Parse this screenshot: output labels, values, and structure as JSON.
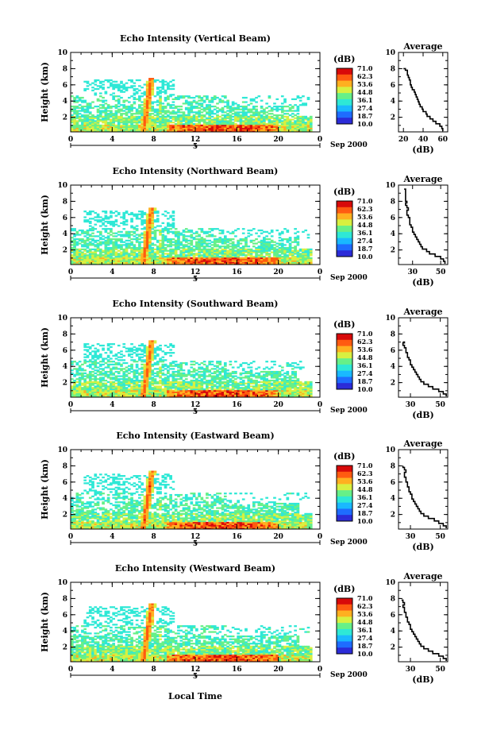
{
  "figure": {
    "xlabel": "Local Time",
    "date_label": "Sep 2000",
    "day_label": "5",
    "colorbar_unit": "(dB)",
    "colorbar_ticks": [
      "71.0",
      "62.3",
      "53.6",
      "44.8",
      "36.1",
      "27.4",
      "18.7",
      "10.0"
    ],
    "colormap": [
      "#2a2ad8",
      "#1e6cff",
      "#18b8ff",
      "#2ee8d6",
      "#66f088",
      "#d8f040",
      "#ffb020",
      "#ff5a10",
      "#d80a0a"
    ],
    "ylabel": "Height (km)",
    "avg_title": "Average",
    "avg_xlabel": "(dB)",
    "line_color": "#000000"
  },
  "chart_data": [
    {
      "type": "heatmap",
      "title": "Echo Intensity (Vertical Beam)",
      "xlabel": "",
      "ylabel": "Height (km)",
      "x_ticks": [
        "0",
        "4",
        "8",
        "12",
        "16",
        "20",
        "0"
      ],
      "y_ticks": [
        "2",
        "4",
        "6",
        "8",
        "10"
      ],
      "xlim": [
        0,
        24
      ],
      "ylim": [
        0.2,
        10
      ],
      "zlim": [
        10.0,
        71.0
      ],
      "echo_top_km": 6.5,
      "profile": {
        "type": "line",
        "title": "Average",
        "xlabel": "(dB)",
        "x_ticks": [
          "20",
          "40",
          "60"
        ],
        "xlim": [
          15,
          65
        ],
        "y": [
          0.3,
          0.6,
          0.9,
          1.2,
          1.5,
          1.8,
          2.1,
          2.4,
          2.7,
          3.0,
          3.3,
          3.6,
          3.9,
          4.2,
          4.5,
          4.8,
          5.1,
          5.4,
          5.7,
          6.0,
          6.3,
          6.6,
          6.9,
          7.2,
          7.5,
          7.8,
          8.0
        ],
        "x": [
          60,
          59,
          57,
          53,
          50,
          47,
          44,
          43,
          40,
          39,
          37,
          36,
          35,
          34,
          33,
          32,
          31,
          29,
          28,
          27,
          27,
          26,
          25,
          24,
          24,
          22,
          20
        ]
      }
    },
    {
      "type": "heatmap",
      "title": "Echo Intensity (Northward Beam)",
      "xlabel": "",
      "ylabel": "Height (km)",
      "x_ticks": [
        "0",
        "4",
        "8",
        "12",
        "16",
        "20",
        "0"
      ],
      "y_ticks": [
        "2",
        "4",
        "6",
        "8",
        "10"
      ],
      "xlim": [
        0,
        24
      ],
      "ylim": [
        0.2,
        10
      ],
      "zlim": [
        10.0,
        71.0
      ],
      "echo_top_km": 6.8,
      "profile": {
        "type": "line",
        "title": "Average",
        "xlabel": "(dB)",
        "x_ticks": [
          "30",
          "50"
        ],
        "xlim": [
          20,
          55
        ],
        "y": [
          0.3,
          0.6,
          0.9,
          1.2,
          1.5,
          1.8,
          2.1,
          2.4,
          2.7,
          3.0,
          3.3,
          3.6,
          3.9,
          4.2,
          4.5,
          4.8,
          5.1,
          5.4,
          5.7,
          6.0,
          6.3,
          6.6,
          6.9,
          7.2,
          7.5,
          7.8,
          8.0,
          9.5
        ],
        "x": [
          53,
          52,
          50,
          46,
          42,
          40,
          37,
          36,
          35,
          34,
          33,
          32,
          31,
          30,
          30,
          29,
          28,
          28,
          28,
          27,
          26,
          26,
          27,
          26,
          25,
          26,
          25,
          24
        ]
      }
    },
    {
      "type": "heatmap",
      "title": "Echo Intensity (Southward Beam)",
      "xlabel": "",
      "ylabel": "Height (km)",
      "x_ticks": [
        "0",
        "4",
        "8",
        "12",
        "16",
        "20",
        "0"
      ],
      "y_ticks": [
        "2",
        "4",
        "6",
        "8",
        "10"
      ],
      "xlim": [
        0,
        24
      ],
      "ylim": [
        0.2,
        10
      ],
      "zlim": [
        10.0,
        71.0
      ],
      "echo_top_km": 6.8,
      "profile": {
        "type": "line",
        "title": "Average",
        "xlabel": "(dB)",
        "x_ticks": [
          "30",
          "50"
        ],
        "xlim": [
          22,
          55
        ],
        "y": [
          0.3,
          0.6,
          0.9,
          1.2,
          1.5,
          1.8,
          2.1,
          2.4,
          2.7,
          3.0,
          3.3,
          3.6,
          3.9,
          4.2,
          4.5,
          4.8,
          5.1,
          5.4,
          5.7,
          6.0,
          6.3,
          6.6,
          6.9,
          7.0
        ],
        "x": [
          54,
          52,
          49,
          45,
          42,
          39,
          37,
          36,
          35,
          34,
          33,
          32,
          31,
          30,
          30,
          29,
          28,
          28,
          27,
          27,
          26,
          25,
          26,
          25
        ]
      }
    },
    {
      "type": "heatmap",
      "title": "Echo Intensity (Eastward Beam)",
      "xlabel": "",
      "ylabel": "Height (km)",
      "x_ticks": [
        "0",
        "4",
        "8",
        "12",
        "16",
        "20",
        "0"
      ],
      "y_ticks": [
        "2",
        "4",
        "6",
        "8",
        "10"
      ],
      "xlim": [
        0,
        24
      ],
      "ylim": [
        0.2,
        10
      ],
      "zlim": [
        10.0,
        71.0
      ],
      "echo_top_km": 7.0,
      "profile": {
        "type": "line",
        "title": "Average",
        "xlabel": "(dB)",
        "x_ticks": [
          "30",
          "50"
        ],
        "xlim": [
          22,
          55
        ],
        "y": [
          0.3,
          0.6,
          0.9,
          1.2,
          1.5,
          1.8,
          2.1,
          2.4,
          2.7,
          3.0,
          3.3,
          3.6,
          3.9,
          4.2,
          4.5,
          4.8,
          5.1,
          5.4,
          5.7,
          6.0,
          6.3,
          6.6,
          6.9,
          7.2,
          7.5,
          7.8,
          8.0
        ],
        "x": [
          54,
          52,
          49,
          46,
          42,
          39,
          37,
          36,
          35,
          34,
          33,
          32,
          31,
          31,
          30,
          29,
          29,
          28,
          28,
          27,
          27,
          26,
          26,
          27,
          26,
          25,
          25
        ]
      }
    },
    {
      "type": "heatmap",
      "title": "Echo Intensity (Westward Beam)",
      "xlabel": "Local Time",
      "ylabel": "Height (km)",
      "x_ticks": [
        "0",
        "4",
        "8",
        "12",
        "16",
        "20",
        "0"
      ],
      "y_ticks": [
        "2",
        "4",
        "6",
        "8",
        "10"
      ],
      "xlim": [
        0,
        24
      ],
      "ylim": [
        0.2,
        10
      ],
      "zlim": [
        10.0,
        71.0
      ],
      "echo_top_km": 7.0,
      "profile": {
        "type": "line",
        "title": "Average",
        "xlabel": "(dB)",
        "x_ticks": [
          "30",
          "50"
        ],
        "xlim": [
          22,
          55
        ],
        "y": [
          0.3,
          0.6,
          0.9,
          1.2,
          1.5,
          1.8,
          2.1,
          2.4,
          2.7,
          3.0,
          3.3,
          3.6,
          3.9,
          4.2,
          4.5,
          4.8,
          5.1,
          5.4,
          5.7,
          6.0,
          6.3,
          6.6,
          6.9,
          7.2,
          7.5,
          7.8
        ],
        "x": [
          54,
          52,
          49,
          45,
          42,
          39,
          37,
          36,
          35,
          34,
          33,
          32,
          31,
          30,
          30,
          29,
          28,
          28,
          27,
          27,
          26,
          26,
          25,
          26,
          25,
          24
        ]
      }
    }
  ]
}
